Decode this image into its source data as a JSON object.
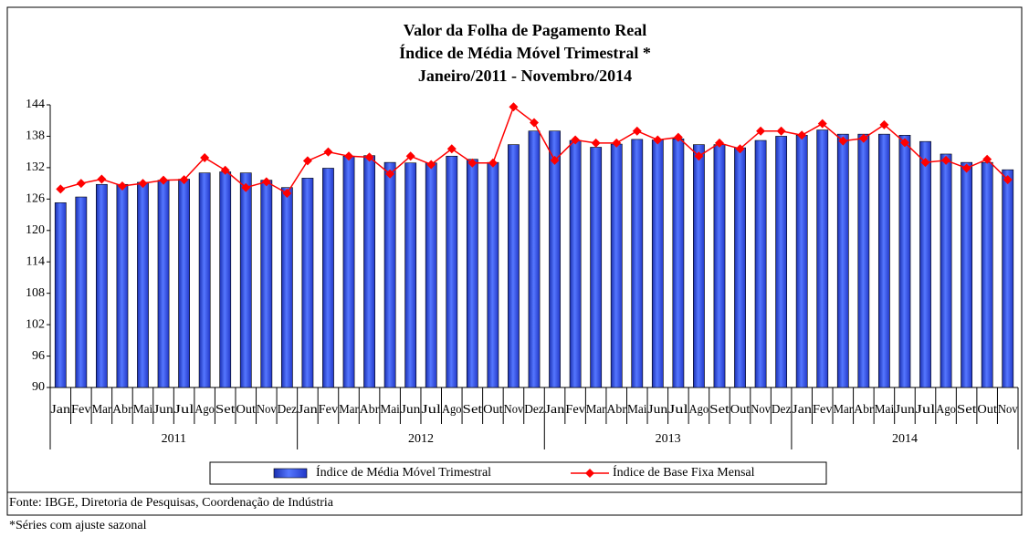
{
  "chart_data": {
    "type": "bar",
    "title": [
      "Valor da Folha de Pagamento Real",
      "Índice de Média Móvel Trimestral *",
      "Janeiro/2011 - Novembro/2014"
    ],
    "categories": [
      "Jan",
      "Fev",
      "Mar",
      "Abr",
      "Mai",
      "Jun",
      "Jul",
      "Ago",
      "Set",
      "Out",
      "Nov",
      "Dez",
      "Jan",
      "Fev",
      "Mar",
      "Abr",
      "Mai",
      "Jun",
      "Jul",
      "Ago",
      "Set",
      "Out",
      "Nov",
      "Dez",
      "Jan",
      "Fev",
      "Mar",
      "Abr",
      "Mai",
      "Jun",
      "Jul",
      "Ago",
      "Set",
      "Out",
      "Nov",
      "Dez",
      "Jan",
      "Fev",
      "Mar",
      "Abr",
      "Mai",
      "Jun",
      "Jul",
      "Ago",
      "Set",
      "Out",
      "Nov"
    ],
    "years": [
      "2011",
      "2012",
      "2013",
      "2014"
    ],
    "series": [
      {
        "name": "Índice de Média Móvel Trimestral",
        "type": "bar",
        "color": "#3355ee",
        "values": [
          125.3,
          126.4,
          128.8,
          128.8,
          129.2,
          129.6,
          129.8,
          131.0,
          131.2,
          131.0,
          129.6,
          128.2,
          130.0,
          131.9,
          134.2,
          134.3,
          133.0,
          132.9,
          132.9,
          134.2,
          133.6,
          133.0,
          136.4,
          139.0,
          139.0,
          137.2,
          135.9,
          136.5,
          137.4,
          137.3,
          137.5,
          136.4,
          136.4,
          135.8,
          137.2,
          138.0,
          138.2,
          139.2,
          138.4,
          138.4,
          138.4,
          138.2,
          137.0,
          134.6,
          133.0,
          133.0,
          131.6
        ]
      },
      {
        "name": "Índice de Base Fixa Mensal",
        "type": "line",
        "color": "#ff0000",
        "values": [
          127.9,
          129.0,
          129.8,
          128.5,
          129.0,
          129.6,
          129.7,
          133.9,
          131.5,
          128.2,
          129.3,
          127.1,
          133.3,
          135.0,
          134.2,
          134.0,
          130.8,
          134.2,
          132.6,
          135.6,
          132.9,
          132.9,
          143.6,
          140.6,
          133.4,
          137.3,
          136.7,
          136.7,
          139.0,
          137.3,
          137.8,
          134.2,
          136.7,
          135.6,
          139.0,
          139.0,
          138.2,
          140.4,
          137.1,
          137.6,
          140.2,
          136.8,
          133.0,
          133.4,
          131.9,
          133.6,
          129.7
        ]
      }
    ],
    "ylim": [
      90,
      144
    ],
    "yticks": [
      90,
      96,
      102,
      108,
      114,
      120,
      126,
      132,
      138,
      144
    ],
    "source": "Fonte: IBGE, Diretoria de Pesquisas, Coordenação de Indústria",
    "note": "*Séries com ajuste sazonal"
  }
}
